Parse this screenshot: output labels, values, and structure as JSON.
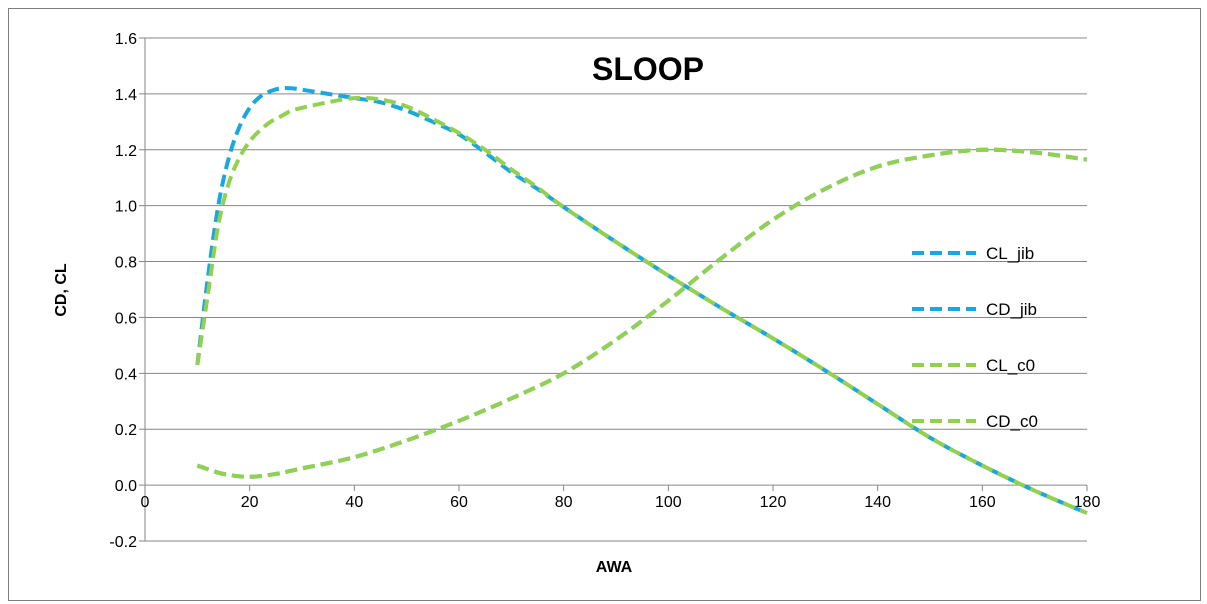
{
  "chart_data": {
    "type": "line",
    "title": "SLOOP",
    "xlabel": "AWA",
    "ylabel": "CD, CL",
    "xlim": [
      0,
      180
    ],
    "ylim": [
      -0.2,
      1.6
    ],
    "xticks": [
      0,
      20,
      40,
      60,
      80,
      100,
      120,
      140,
      160,
      180
    ],
    "yticks": [
      -0.2,
      0.0,
      0.2,
      0.4,
      0.6,
      0.8,
      1.0,
      1.2,
      1.4,
      1.6
    ],
    "xtick_labels": [
      "0",
      "20",
      "40",
      "60",
      "80",
      "100",
      "120",
      "140",
      "160",
      "180"
    ],
    "ytick_labels": [
      "-0.2",
      "0.0",
      "0.2",
      "0.4",
      "0.6",
      "0.8",
      "1.0",
      "1.2",
      "1.4",
      "1.6"
    ],
    "grid": "horizontal",
    "legend_position": "right",
    "series": [
      {
        "name": "CL_jib",
        "color": "#1aa7e0",
        "x": [
          10,
          12,
          14,
          16,
          18,
          20,
          22,
          24,
          26,
          28,
          30,
          35,
          40,
          45,
          50,
          55,
          60,
          65,
          70,
          75,
          80,
          90,
          100,
          110,
          120,
          130,
          140,
          150,
          160,
          170,
          180
        ],
        "y": [
          0.43,
          0.74,
          1.0,
          1.17,
          1.28,
          1.35,
          1.39,
          1.41,
          1.42,
          1.42,
          1.415,
          1.4,
          1.385,
          1.37,
          1.34,
          1.3,
          1.255,
          1.19,
          1.12,
          1.06,
          0.995,
          0.87,
          0.75,
          0.635,
          0.525,
          0.41,
          0.29,
          0.17,
          0.07,
          -0.02,
          -0.1
        ]
      },
      {
        "name": "CD_jib",
        "color": "#1aa7e0",
        "x": [
          10,
          15,
          20,
          25,
          30,
          40,
          50,
          60,
          70,
          80,
          90,
          100,
          110,
          120,
          130,
          140,
          150,
          160,
          170,
          180
        ],
        "y": [
          0.07,
          0.04,
          0.03,
          0.04,
          0.06,
          0.1,
          0.16,
          0.23,
          0.31,
          0.4,
          0.52,
          0.66,
          0.81,
          0.95,
          1.06,
          1.14,
          1.18,
          1.2,
          1.19,
          1.165
        ]
      },
      {
        "name": "CL_c0",
        "color": "#92d050",
        "x": [
          10,
          12,
          14,
          16,
          18,
          20,
          22,
          24,
          26,
          28,
          30,
          35,
          40,
          45,
          50,
          55,
          60,
          65,
          70,
          75,
          80,
          90,
          100,
          110,
          120,
          130,
          140,
          150,
          160,
          170,
          180
        ],
        "y": [
          0.43,
          0.68,
          0.93,
          1.08,
          1.17,
          1.23,
          1.27,
          1.3,
          1.32,
          1.34,
          1.35,
          1.37,
          1.385,
          1.38,
          1.355,
          1.31,
          1.26,
          1.2,
          1.13,
          1.065,
          0.995,
          0.87,
          0.75,
          0.635,
          0.525,
          0.41,
          0.29,
          0.17,
          0.07,
          -0.02,
          -0.1
        ]
      },
      {
        "name": "CD_c0",
        "color": "#92d050",
        "x": [
          10,
          15,
          20,
          25,
          30,
          40,
          50,
          60,
          70,
          80,
          90,
          100,
          110,
          120,
          130,
          140,
          150,
          160,
          170,
          180
        ],
        "y": [
          0.07,
          0.04,
          0.03,
          0.04,
          0.06,
          0.1,
          0.16,
          0.23,
          0.31,
          0.4,
          0.52,
          0.66,
          0.81,
          0.95,
          1.06,
          1.14,
          1.18,
          1.2,
          1.19,
          1.165
        ]
      }
    ]
  }
}
